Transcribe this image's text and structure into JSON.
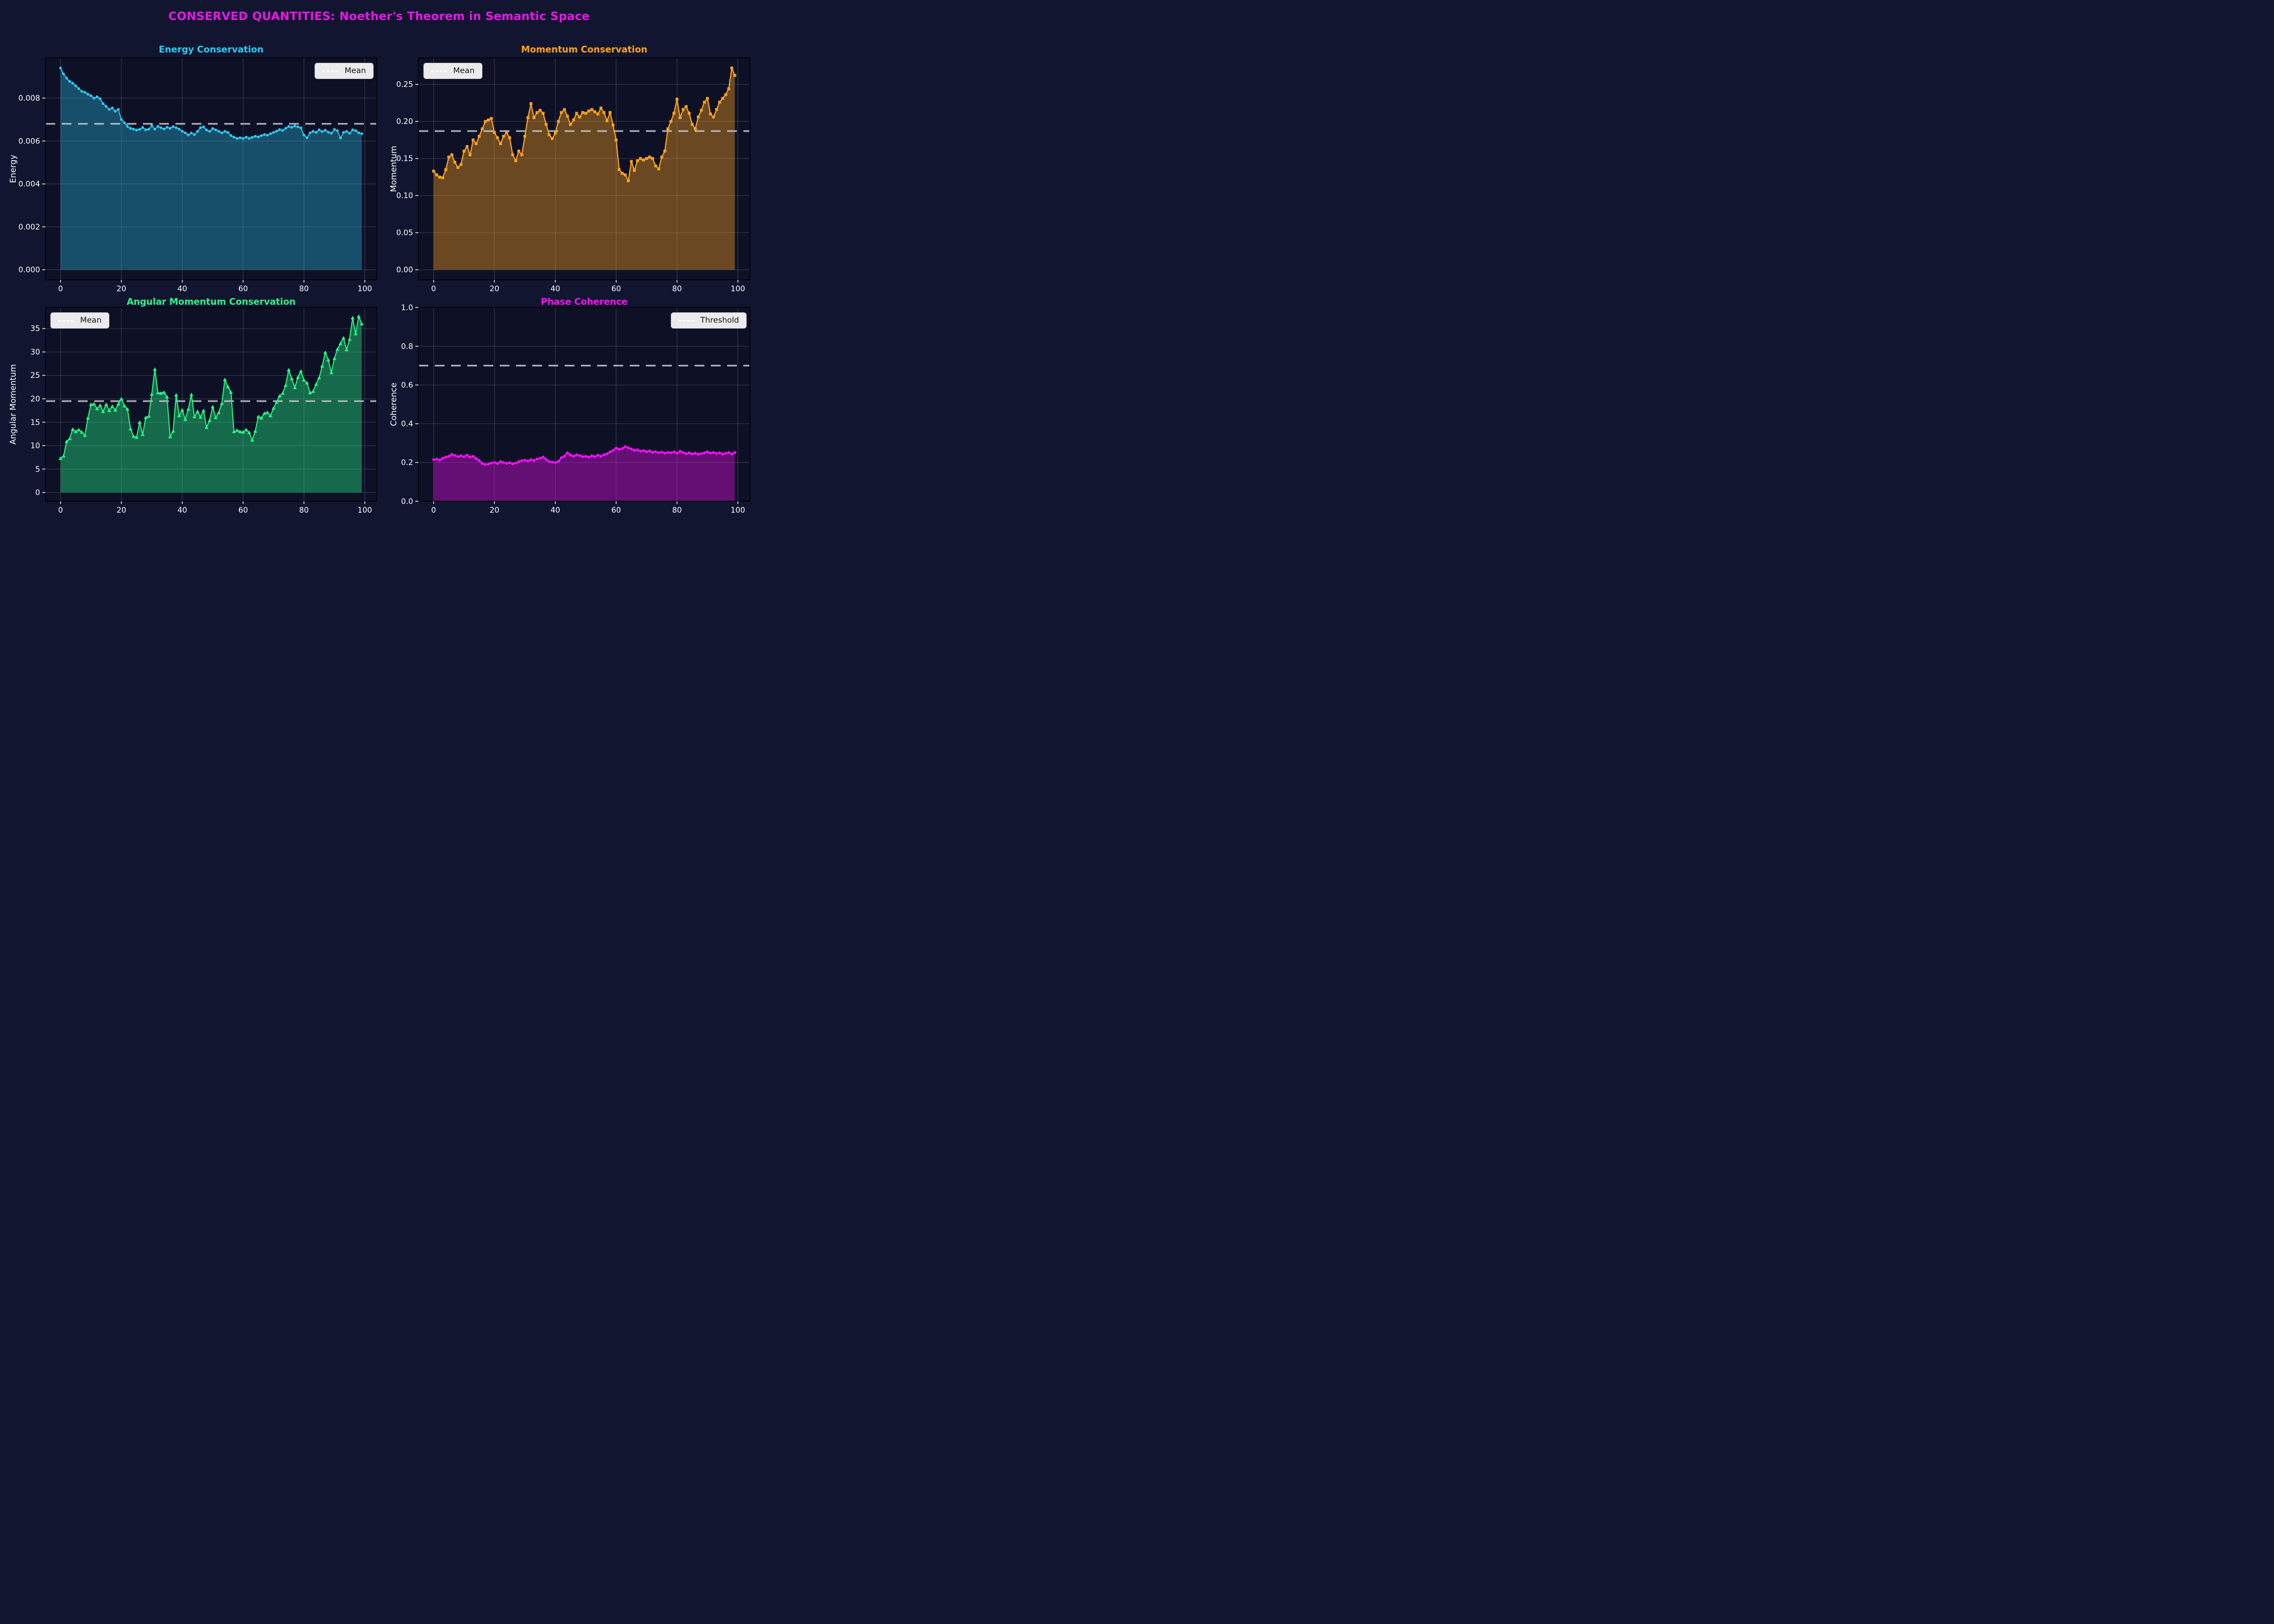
{
  "suptitle": {
    "text": "CONSERVED QUANTITIES: Noether's Theorem in Semantic Space",
    "color": "#e816e8"
  },
  "style": {
    "figure_bg": "#12152f",
    "axes_bg": "#0e1126",
    "grid_color": "rgba(205,210,228,0.22)",
    "spine_color": "#04050e",
    "tick_color": "#e9e9f2",
    "tick_text_color": "#ffffff",
    "ref_line_color": "#c9cdd4",
    "legend_bg": "#ebebee",
    "legend_text_color": "#141414"
  },
  "chart_data": [
    {
      "type": "line",
      "id": "energy",
      "title": "Energy Conservation",
      "ylabel": "Energy",
      "xlabel": "",
      "color": "#2acdf5",
      "fill_alpha": 0.33,
      "marker": "circle",
      "marker_size": 2.5,
      "line_width": 1.8,
      "legend_position": "top-right",
      "ref_line": {
        "label": "Mean",
        "value": 0.0068
      },
      "xlim": [
        -4.95,
        103.95
      ],
      "ylim": [
        -0.00047,
        0.00987
      ],
      "xticks": {
        "values": [
          0,
          20,
          40,
          60,
          80,
          100
        ],
        "labels": [
          "0",
          "20",
          "40",
          "60",
          "80",
          "100"
        ]
      },
      "yticks": {
        "values": [
          0,
          0.002,
          0.004,
          0.006,
          0.008
        ],
        "labels": [
          "0.000",
          "0.002",
          "0.004",
          "0.006",
          "0.008"
        ]
      },
      "grid": true,
      "x": "index (0-99)",
      "values": [
        0.0094,
        0.00912,
        0.00893,
        0.00878,
        0.00869,
        0.00857,
        0.00844,
        0.00831,
        0.00827,
        0.00818,
        0.00811,
        0.00799,
        0.00806,
        0.00797,
        0.00774,
        0.00761,
        0.00747,
        0.00754,
        0.00739,
        0.00747,
        0.007,
        0.00685,
        0.00668,
        0.00659,
        0.00655,
        0.00651,
        0.00654,
        0.00663,
        0.00652,
        0.00655,
        0.00672,
        0.00655,
        0.00668,
        0.00662,
        0.00656,
        0.00664,
        0.00659,
        0.00667,
        0.00662,
        0.00655,
        0.00645,
        0.00638,
        0.00628,
        0.00637,
        0.0063,
        0.00645,
        0.00662,
        0.00666,
        0.00651,
        0.00645,
        0.00658,
        0.00652,
        0.00645,
        0.00638,
        0.00645,
        0.0064,
        0.00625,
        0.00618,
        0.00612,
        0.00615,
        0.00612,
        0.00618,
        0.00612,
        0.00617,
        0.00622,
        0.00619,
        0.00625,
        0.0063,
        0.00627,
        0.00634,
        0.0064,
        0.00646,
        0.00653,
        0.00649,
        0.00659,
        0.00668,
        0.00664,
        0.0067,
        0.00666,
        0.00661,
        0.00628,
        0.00615,
        0.00638,
        0.00645,
        0.0064,
        0.00652,
        0.00644,
        0.0065,
        0.00641,
        0.00636,
        0.00654,
        0.00648,
        0.00614,
        0.0064,
        0.00645,
        0.00636,
        0.00652,
        0.00648,
        0.00638,
        0.00634
      ]
    },
    {
      "type": "line",
      "id": "momentum",
      "title": "Momentum Conservation",
      "ylabel": "Momentum",
      "xlabel": "",
      "color": "#ffa41c",
      "fill_alpha": 0.38,
      "marker": "square",
      "marker_size": 5,
      "line_width": 2.1,
      "legend_position": "top-left",
      "ref_line": {
        "label": "Mean",
        "value": 0.187
      },
      "xlim": [
        -4.95,
        103.95
      ],
      "ylim": [
        -0.0136,
        0.2856
      ],
      "xticks": {
        "values": [
          0,
          20,
          40,
          60,
          80,
          100
        ],
        "labels": [
          "0",
          "20",
          "40",
          "60",
          "80",
          "100"
        ]
      },
      "yticks": {
        "values": [
          0,
          0.05,
          0.1,
          0.15,
          0.2,
          0.25
        ],
        "labels": [
          "0.00",
          "0.05",
          "0.10",
          "0.15",
          "0.20",
          "0.25"
        ]
      },
      "grid": true,
      "x": "index (0-99)",
      "values": [
        0.133,
        0.128,
        0.125,
        0.124,
        0.135,
        0.152,
        0.155,
        0.145,
        0.138,
        0.142,
        0.16,
        0.166,
        0.155,
        0.175,
        0.17,
        0.18,
        0.19,
        0.2,
        0.202,
        0.204,
        0.185,
        0.178,
        0.17,
        0.18,
        0.185,
        0.178,
        0.155,
        0.147,
        0.16,
        0.155,
        0.18,
        0.205,
        0.224,
        0.205,
        0.212,
        0.215,
        0.211,
        0.196,
        0.182,
        0.177,
        0.184,
        0.2,
        0.212,
        0.216,
        0.207,
        0.196,
        0.202,
        0.211,
        0.206,
        0.212,
        0.211,
        0.214,
        0.216,
        0.213,
        0.21,
        0.218,
        0.212,
        0.201,
        0.212,
        0.195,
        0.175,
        0.135,
        0.13,
        0.128,
        0.12,
        0.146,
        0.134,
        0.147,
        0.15,
        0.148,
        0.15,
        0.152,
        0.15,
        0.14,
        0.136,
        0.152,
        0.16,
        0.19,
        0.2,
        0.211,
        0.23,
        0.205,
        0.216,
        0.22,
        0.211,
        0.196,
        0.19,
        0.206,
        0.215,
        0.226,
        0.231,
        0.21,
        0.206,
        0.216,
        0.226,
        0.231,
        0.236,
        0.244,
        0.272,
        0.262
      ]
    },
    {
      "type": "line",
      "id": "angular-momentum",
      "title": "Angular Momentum Conservation",
      "ylabel": "Angular Momentum",
      "xlabel": "",
      "color": "#25f987",
      "fill_alpha": 0.38,
      "marker": "triangle",
      "marker_size": 3.6,
      "line_width": 1.9,
      "legend_position": "top-left",
      "ref_line": {
        "label": "Mean",
        "value": 19.5
      },
      "xlim": [
        -4.95,
        103.95
      ],
      "ylim": [
        -1.88,
        39.5
      ],
      "xticks": {
        "values": [
          0,
          20,
          40,
          60,
          80,
          100
        ],
        "labels": [
          "0",
          "20",
          "40",
          "60",
          "80",
          "100"
        ]
      },
      "yticks": {
        "values": [
          0,
          5,
          10,
          15,
          20,
          25,
          30,
          35
        ],
        "labels": [
          "0",
          "5",
          "10",
          "15",
          "20",
          "25",
          "30",
          "35"
        ]
      },
      "grid": true,
      "x": "index (0-99)",
      "values": [
        7.3,
        7.8,
        10.9,
        11.5,
        13.5,
        13.0,
        13.4,
        12.9,
        12.2,
        15.9,
        18.8,
        18.9,
        17.9,
        18.6,
        17.3,
        18.8,
        17.5,
        18.4,
        17.6,
        18.9,
        20.0,
        18.5,
        17.8,
        13.6,
        12.0,
        11.8,
        15.0,
        12.4,
        16.0,
        16.3,
        21.0,
        26.3,
        21.3,
        21.2,
        21.4,
        20.4,
        11.9,
        13.1,
        20.8,
        16.4,
        17.6,
        15.6,
        17.8,
        20.9,
        16.2,
        17.3,
        16.1,
        17.5,
        13.9,
        15.4,
        18.3,
        16.0,
        17.1,
        19.0,
        24.1,
        22.6,
        21.4,
        13.0,
        13.3,
        13.0,
        12.9,
        13.4,
        12.8,
        11.2,
        13.1,
        16.2,
        15.9,
        16.9,
        17.1,
        16.4,
        18.0,
        19.3,
        20.6,
        21.2,
        22.9,
        26.2,
        24.3,
        22.4,
        24.6,
        25.9,
        24.0,
        23.4,
        21.3,
        21.6,
        23.1,
        24.5,
        27.0,
        29.9,
        28.3,
        25.6,
        28.6,
        30.6,
        31.8,
        33.0,
        30.5,
        32.7,
        37.3,
        33.9,
        37.6,
        36.0
      ]
    },
    {
      "type": "line",
      "id": "phase-coherence",
      "title": "Phase Coherence",
      "ylabel": "Coherence",
      "xlabel": "",
      "color": "#fb0ffb",
      "fill_alpha": 0.36,
      "marker": "diamond",
      "marker_size": 3.2,
      "line_width": 2.6,
      "legend_position": "top-right",
      "ref_line": {
        "label": "Threshold",
        "value": 0.7
      },
      "xlim": [
        -4.95,
        103.95
      ],
      "ylim": [
        0,
        1.0
      ],
      "xticks": {
        "values": [
          0,
          20,
          40,
          60,
          80,
          100
        ],
        "labels": [
          "0",
          "20",
          "40",
          "60",
          "80",
          "100"
        ]
      },
      "yticks": {
        "values": [
          0,
          0.2,
          0.4,
          0.6,
          0.8,
          1.0
        ],
        "labels": [
          "0.0",
          "0.2",
          "0.4",
          "0.6",
          "0.8",
          "1.0"
        ]
      },
      "grid": true,
      "x": "index (0-99)",
      "values": [
        0.215,
        0.218,
        0.212,
        0.222,
        0.228,
        0.232,
        0.242,
        0.236,
        0.23,
        0.235,
        0.23,
        0.238,
        0.228,
        0.232,
        0.22,
        0.21,
        0.195,
        0.19,
        0.192,
        0.198,
        0.2,
        0.195,
        0.205,
        0.2,
        0.196,
        0.199,
        0.193,
        0.197,
        0.205,
        0.21,
        0.212,
        0.208,
        0.215,
        0.21,
        0.218,
        0.222,
        0.228,
        0.215,
        0.205,
        0.202,
        0.2,
        0.205,
        0.225,
        0.232,
        0.25,
        0.238,
        0.232,
        0.24,
        0.236,
        0.23,
        0.232,
        0.228,
        0.235,
        0.23,
        0.238,
        0.232,
        0.24,
        0.245,
        0.255,
        0.262,
        0.275,
        0.268,
        0.272,
        0.282,
        0.276,
        0.27,
        0.262,
        0.265,
        0.258,
        0.262,
        0.255,
        0.26,
        0.252,
        0.256,
        0.25,
        0.254,
        0.248,
        0.252,
        0.25,
        0.255,
        0.248,
        0.258,
        0.252,
        0.245,
        0.25,
        0.244,
        0.248,
        0.242,
        0.246,
        0.25,
        0.255,
        0.248,
        0.252,
        0.246,
        0.25,
        0.243,
        0.247,
        0.252,
        0.244,
        0.252
      ]
    }
  ]
}
